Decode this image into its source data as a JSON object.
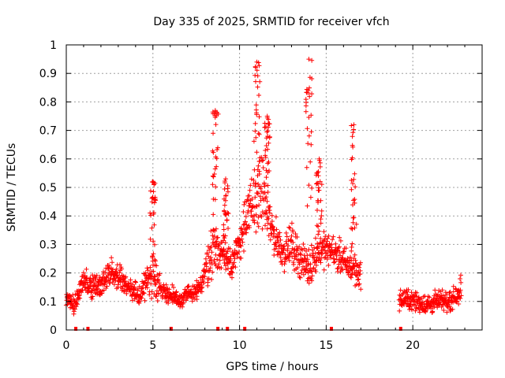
{
  "chart_data": {
    "type": "scatter",
    "title": "Day 335 of 2025, SRMTID for receiver vfch",
    "xlabel": "GPS time / hours",
    "ylabel": "SRMTID / TECUs",
    "xlim": [
      0,
      24
    ],
    "ylim": [
      0,
      1
    ],
    "x_ticks": [
      0,
      5,
      10,
      15,
      20
    ],
    "x_tick_labels": [
      "0",
      "5",
      "10",
      "15",
      "20"
    ],
    "y_ticks": [
      0,
      0.1,
      0.2,
      0.3,
      0.4,
      0.5,
      0.6,
      0.7,
      0.8,
      0.9,
      1
    ],
    "y_tick_labels": [
      "0",
      "0.1",
      "0.2",
      "0.3",
      "0.4",
      "0.5",
      "0.6",
      "0.7",
      "0.8",
      "0.9",
      "1"
    ],
    "grid": true,
    "marker": "+",
    "series_color": "#ff0000",
    "profile": {
      "x": [
        0.0,
        0.3,
        0.6,
        1.0,
        1.3,
        1.6,
        2.0,
        2.3,
        2.6,
        3.0,
        3.3,
        3.6,
        4.0,
        4.3,
        4.6,
        5.0,
        5.3,
        5.6,
        6.0,
        6.3,
        6.6,
        7.0,
        7.3,
        7.6,
        8.0,
        8.3,
        8.6,
        9.0,
        9.3,
        9.6,
        10.0,
        10.3,
        10.6,
        11.0,
        11.3,
        11.6,
        12.0,
        12.3,
        12.6,
        13.0,
        13.3,
        13.6,
        14.0,
        14.3,
        14.6,
        15.0,
        15.3,
        15.6,
        16.0,
        16.3,
        16.6,
        16.9,
        19.3,
        19.6,
        20.0,
        20.3,
        20.6,
        21.0,
        21.3,
        21.6,
        22.0,
        22.3,
        22.6,
        22.8
      ],
      "center": [
        0.11,
        0.09,
        0.1,
        0.18,
        0.16,
        0.15,
        0.16,
        0.18,
        0.2,
        0.19,
        0.17,
        0.14,
        0.13,
        0.12,
        0.17,
        0.2,
        0.16,
        0.14,
        0.12,
        0.11,
        0.1,
        0.13,
        0.12,
        0.14,
        0.2,
        0.26,
        0.3,
        0.26,
        0.26,
        0.24,
        0.3,
        0.38,
        0.42,
        0.46,
        0.5,
        0.4,
        0.33,
        0.3,
        0.27,
        0.3,
        0.27,
        0.24,
        0.22,
        0.25,
        0.29,
        0.28,
        0.28,
        0.27,
        0.24,
        0.22,
        0.22,
        0.2,
        0.1,
        0.11,
        0.1,
        0.1,
        0.09,
        0.09,
        0.1,
        0.1,
        0.1,
        0.11,
        0.13,
        0.15
      ],
      "spread": [
        0.05,
        0.05,
        0.05,
        0.08,
        0.07,
        0.06,
        0.07,
        0.07,
        0.07,
        0.06,
        0.06,
        0.05,
        0.05,
        0.05,
        0.09,
        0.12,
        0.07,
        0.05,
        0.05,
        0.05,
        0.04,
        0.05,
        0.05,
        0.06,
        0.09,
        0.12,
        0.12,
        0.1,
        0.1,
        0.09,
        0.09,
        0.12,
        0.15,
        0.18,
        0.18,
        0.14,
        0.1,
        0.09,
        0.09,
        0.1,
        0.1,
        0.09,
        0.09,
        0.1,
        0.1,
        0.08,
        0.07,
        0.08,
        0.08,
        0.08,
        0.08,
        0.07,
        0.05,
        0.05,
        0.05,
        0.05,
        0.05,
        0.05,
        0.05,
        0.05,
        0.05,
        0.05,
        0.06,
        0.07
      ]
    },
    "peaks": [
      {
        "x": 5.0,
        "y": 0.52
      },
      {
        "x": 8.6,
        "y": 0.77
      },
      {
        "x": 9.2,
        "y": 0.53
      },
      {
        "x": 11.0,
        "y": 0.94
      },
      {
        "x": 11.6,
        "y": 0.75
      },
      {
        "x": 14.0,
        "y": 0.95
      },
      {
        "x": 14.6,
        "y": 0.6
      },
      {
        "x": 16.6,
        "y": 0.72
      }
    ],
    "baseline_markers_x": [
      0.55,
      1.25,
      6.05,
      8.75,
      9.3,
      10.3,
      15.3,
      19.3
    ],
    "gap": [
      17.0,
      19.2
    ]
  }
}
